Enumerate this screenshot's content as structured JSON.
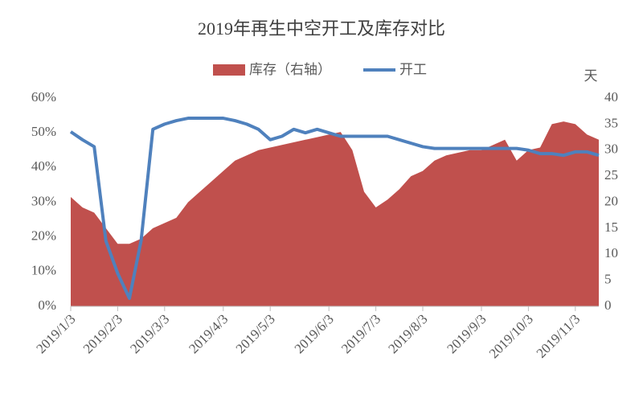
{
  "chart_data": {
    "type": "combo",
    "title": "2019年再生中空开工及库存对比",
    "y2_label": "天",
    "legend": "top",
    "categories": [
      "2019/1/3",
      null,
      null,
      null,
      "2019/2/3",
      null,
      null,
      null,
      "2019/3/3",
      null,
      null,
      null,
      null,
      "2019/4/3",
      null,
      null,
      null,
      "2019/5/3",
      null,
      null,
      null,
      null,
      "2019/6/3",
      null,
      null,
      null,
      "2019/7/3",
      null,
      null,
      null,
      "2019/8/3",
      null,
      null,
      null,
      null,
      "2019/9/3",
      null,
      null,
      null,
      "2019/10/3",
      null,
      null,
      null,
      "2019/11/3",
      null,
      null
    ],
    "series": [
      {
        "name": "库存（右轴）",
        "type": "area",
        "axis": "y2",
        "color": "#c0504d",
        "values": [
          21,
          19,
          18,
          15,
          12,
          12,
          13,
          15,
          16,
          17,
          20,
          22,
          24,
          26,
          28,
          29,
          30,
          30.5,
          31,
          31.5,
          32,
          32.5,
          33,
          33.5,
          30,
          22,
          19,
          20.5,
          22.5,
          25,
          26,
          28,
          29,
          29.5,
          30,
          30,
          31,
          32,
          28,
          30,
          30.5,
          35,
          35.5,
          35,
          33,
          32
        ]
      },
      {
        "name": "开工",
        "type": "line",
        "axis": "y",
        "color": "#4f81bd",
        "values": [
          50.3,
          48,
          46,
          18.8,
          9.5,
          2.3,
          19,
          51,
          52.5,
          53.5,
          54.2,
          54.2,
          54.2,
          54.2,
          53.5,
          52.5,
          51,
          48,
          49,
          51,
          50,
          51,
          50,
          49,
          49,
          49,
          49,
          49,
          48,
          47,
          46,
          45.5,
          45.5,
          45.5,
          45.5,
          45.5,
          45.5,
          45.5,
          45.5,
          45,
          44,
          44,
          43.5,
          44.5,
          44.5,
          43.5
        ]
      }
    ],
    "ylim": [
      0,
      60
    ],
    "yticks": [
      {
        "value": 0,
        "label": "0%"
      },
      {
        "value": 10,
        "label": "10%"
      },
      {
        "value": 20,
        "label": "20%"
      },
      {
        "value": 30,
        "label": "30%"
      },
      {
        "value": 40,
        "label": "40%"
      },
      {
        "value": 50,
        "label": "50%"
      },
      {
        "value": 60,
        "label": "60%"
      }
    ],
    "y2lim": [
      0,
      40
    ],
    "y2ticks": [
      0,
      5,
      10,
      15,
      20,
      25,
      30,
      35,
      40
    ]
  }
}
